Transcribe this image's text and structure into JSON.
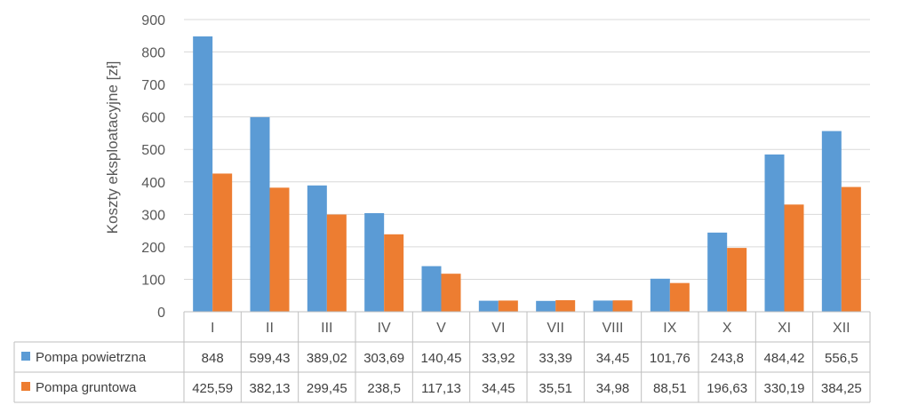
{
  "chart_data": {
    "type": "bar",
    "ylabel": "Koszty eksploatacyjne [zł]",
    "xlabel": "",
    "ylim": [
      0,
      900
    ],
    "y_ticks": [
      "0",
      "100",
      "200",
      "300",
      "400",
      "500",
      "600",
      "700",
      "800",
      "900"
    ],
    "grid": true,
    "legend": "data-table-left",
    "categories": [
      "I",
      "II",
      "III",
      "IV",
      "V",
      "VI",
      "VII",
      "VIII",
      "IX",
      "X",
      "XI",
      "XII"
    ],
    "series": [
      {
        "name": "Pompa powietrzna",
        "color": "#5b9bd5",
        "values": [
          848,
          599.43,
          389.02,
          303.69,
          140.45,
          33.92,
          33.39,
          34.45,
          101.76,
          243.8,
          484.42,
          556.5
        ],
        "labels": [
          "848",
          "599,43",
          "389,02",
          "303,69",
          "140,45",
          "33,92",
          "33,39",
          "34,45",
          "101,76",
          "243,8",
          "484,42",
          "556,5"
        ]
      },
      {
        "name": "Pompa gruntowa",
        "color": "#ed7d31",
        "values": [
          425.59,
          382.13,
          299.45,
          238.5,
          117.13,
          34.45,
          35.51,
          34.98,
          88.51,
          196.63,
          330.19,
          384.25
        ],
        "labels": [
          "425,59",
          "382,13",
          "299,45",
          "238,5",
          "117,13",
          "34,45",
          "35,51",
          "34,98",
          "88,51",
          "196,63",
          "330,19",
          "384,25"
        ]
      }
    ]
  }
}
